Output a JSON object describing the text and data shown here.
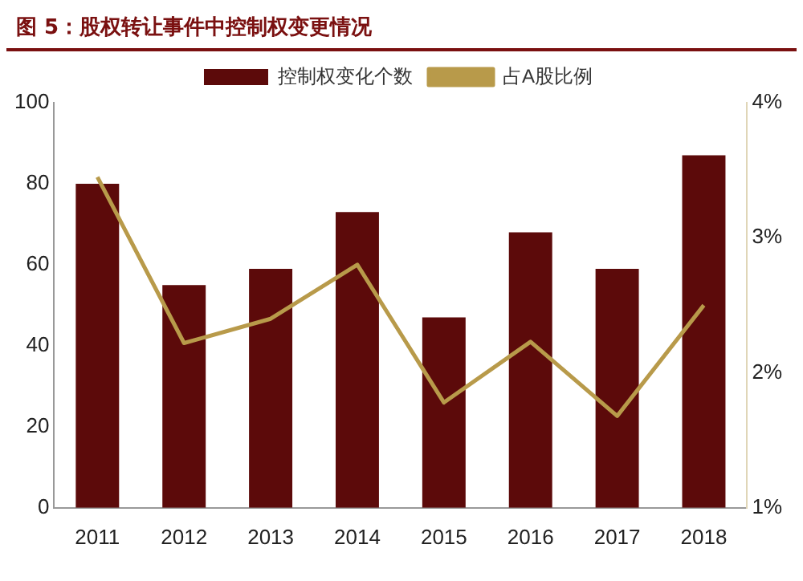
{
  "chart_data": {
    "type": "bar",
    "title": "图 5：股权转让事件中控制权变更情况",
    "categories": [
      "2011",
      "2012",
      "2013",
      "2014",
      "2015",
      "2016",
      "2017",
      "2018"
    ],
    "series": [
      {
        "name": "控制权变化个数",
        "color": "#5c0a0a",
        "values": [
          80,
          55,
          59,
          73,
          47,
          68,
          59,
          87
        ]
      },
      {
        "name": "占A股比例",
        "type": "line",
        "axis": "y2",
        "color": "#b89a4a",
        "values": [
          3.45,
          2.22,
          2.4,
          2.8,
          1.78,
          2.23,
          1.68,
          2.5
        ]
      }
    ],
    "ylim": [
      0,
      100
    ],
    "yticks": [
      0,
      20,
      40,
      60,
      80,
      100
    ],
    "y2lim": [
      1,
      4
    ],
    "y2ticks": [
      {
        "value": 1,
        "label": "1%"
      },
      {
        "value": 2,
        "label": "2%"
      },
      {
        "value": 3,
        "label": "3%"
      },
      {
        "value": 4,
        "label": "4%"
      }
    ],
    "legend": "top",
    "grid": false,
    "marker": "none"
  }
}
